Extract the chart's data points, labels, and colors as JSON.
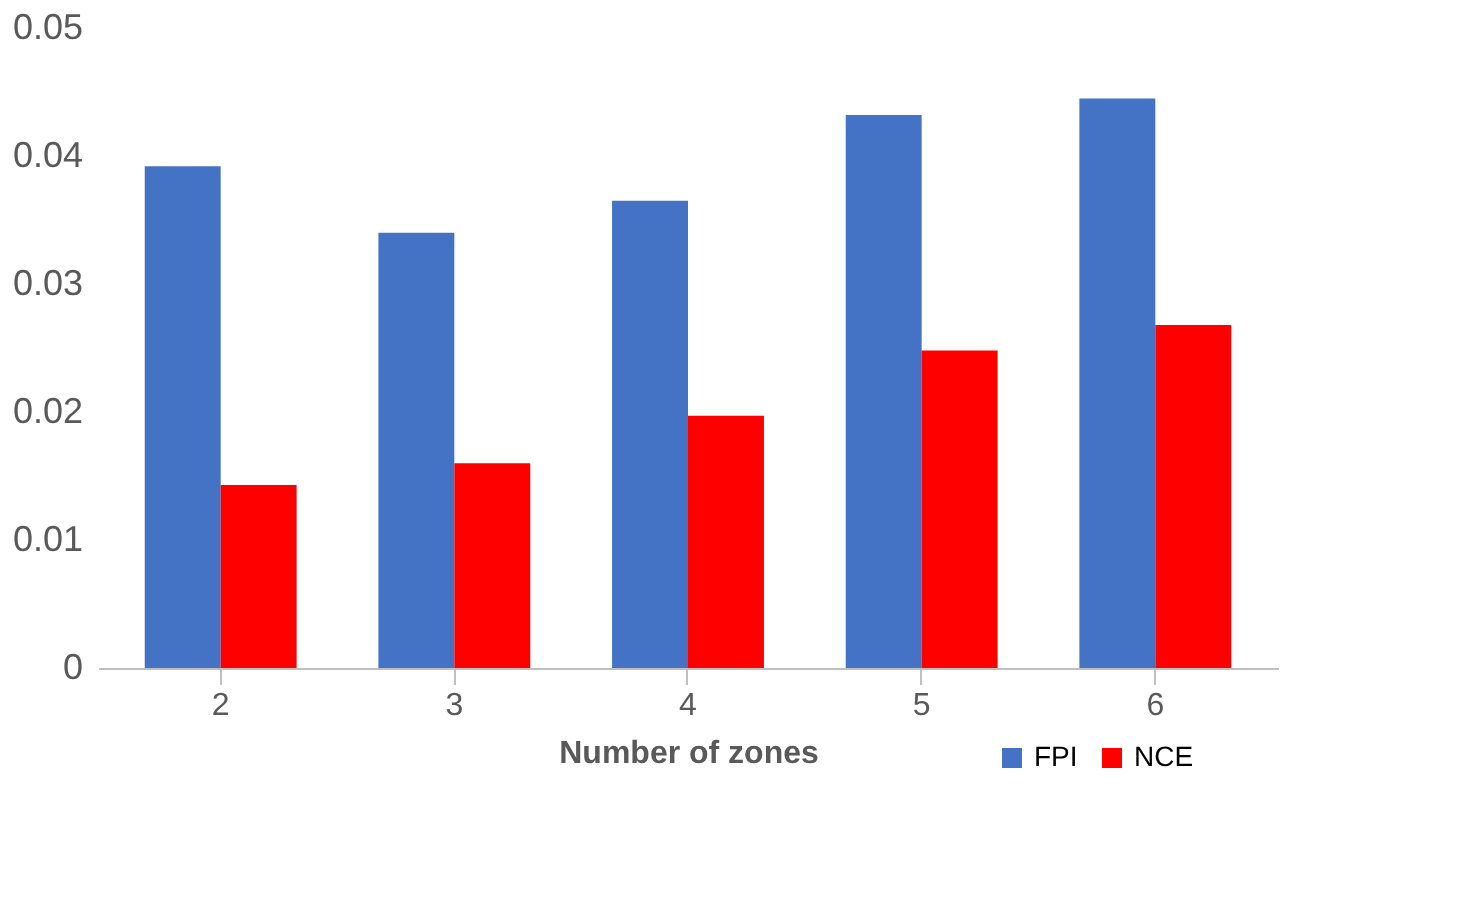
{
  "chart_data": {
    "type": "bar",
    "xlabel": "Number of zones",
    "categories": [
      "2",
      "3",
      "4",
      "5",
      "6"
    ],
    "series": [
      {
        "name": "FPI",
        "color": "#4472c4",
        "values": [
          0.0392,
          0.034,
          0.0365,
          0.0432,
          0.0445
        ]
      },
      {
        "name": "NCE",
        "color": "#ff0000",
        "values": [
          0.0143,
          0.016,
          0.0197,
          0.0248,
          0.0268
        ]
      }
    ],
    "ylim": [
      0,
      0.05
    ],
    "yticks": [
      0,
      0.01,
      0.02,
      0.03,
      0.04,
      0.05
    ],
    "grid": false,
    "legend": "bottom right"
  }
}
